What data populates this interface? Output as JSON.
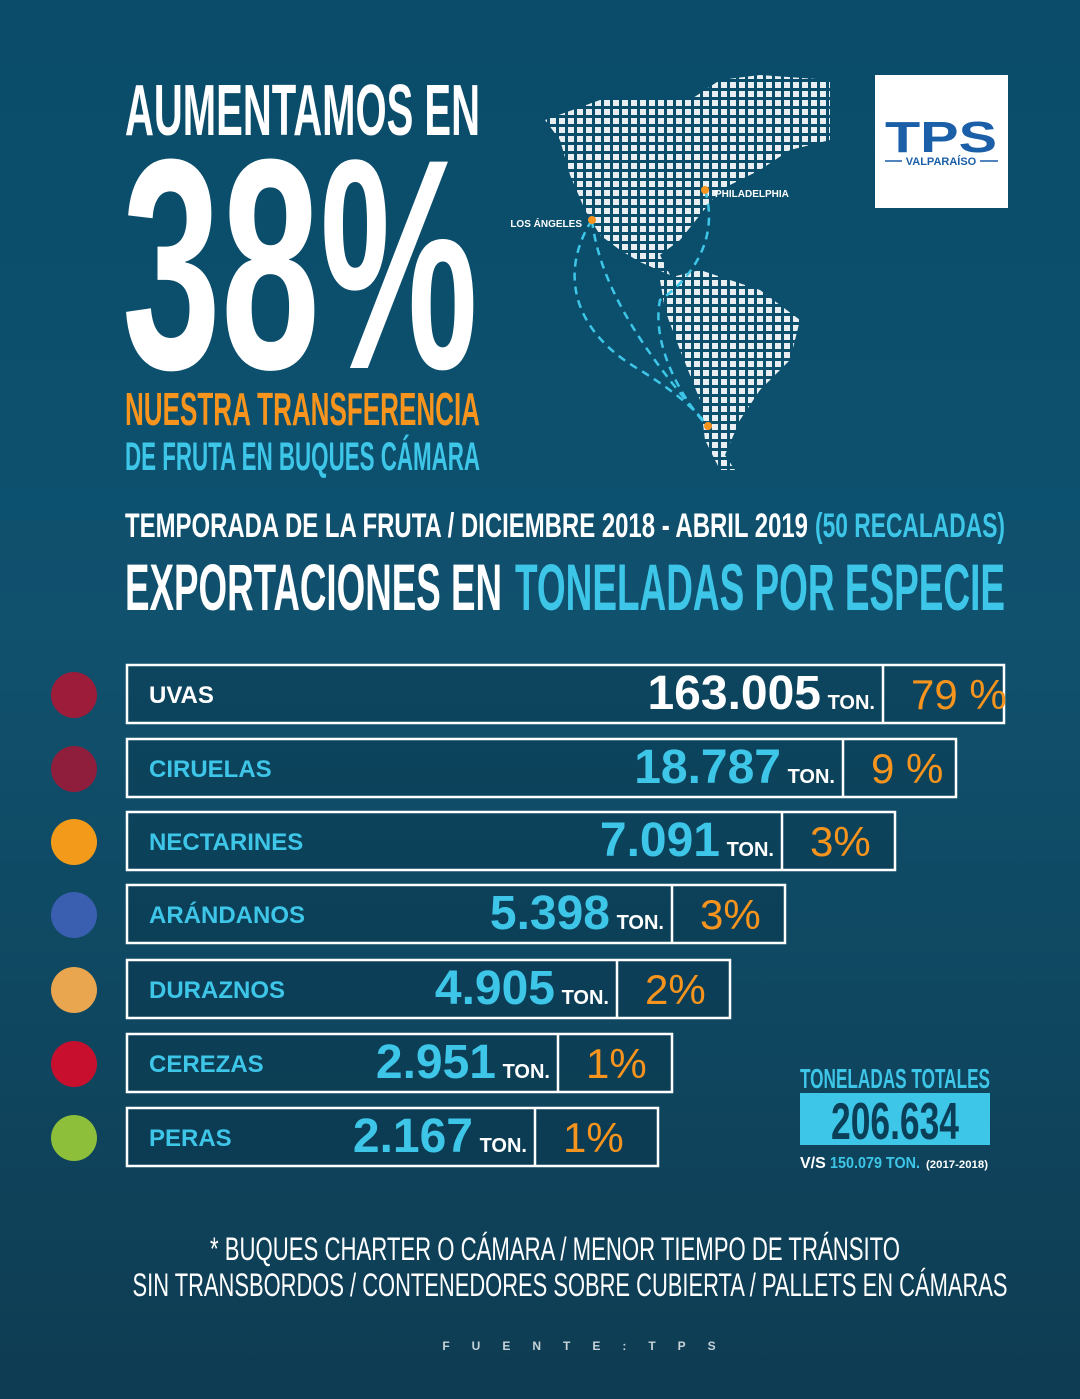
{
  "headline": {
    "line1": "AUMENTAMOS EN",
    "big": "38%",
    "line2": "NUESTRA TRANSFERENCIA",
    "line3": "DE FRUTA EN BUQUES CÁMARA"
  },
  "map": {
    "labels": [
      "PHILADELPHIA",
      "LOS ÁNGELES"
    ]
  },
  "logo": {
    "name": "TPS",
    "city": "VALPARAÍSO"
  },
  "season": {
    "text": "TEMPORADA DE LA FRUTA / DICIEMBRE 2018 - ABRIL 2019",
    "calls": "(50 RECALADAS)"
  },
  "section": {
    "title": "EXPORTACIONES EN",
    "highlight": "TONELADAS POR ESPECIE"
  },
  "rows": [
    {
      "name": "UVAS",
      "tons": "163.005",
      "unit": "TON.",
      "share": "79 %"
    },
    {
      "name": "CIRUELAS",
      "tons": "18.787",
      "unit": "TON.",
      "share": "9 %"
    },
    {
      "name": "NECTARINES",
      "tons": "7.091",
      "unit": "TON.",
      "share": "3%"
    },
    {
      "name": "ARÁNDANOS",
      "tons": "5.398",
      "unit": "TON.",
      "share": "3%"
    },
    {
      "name": "DURAZNOS",
      "tons": "4.905",
      "unit": "TON.",
      "share": "2%"
    },
    {
      "name": "CEREZAS",
      "tons": "2.951",
      "unit": "TON.",
      "share": "1%"
    },
    {
      "name": "PERAS",
      "tons": "2.167",
      "unit": "TON.",
      "share": "1%"
    }
  ],
  "totals": {
    "label": "TONELADAS TOTALES",
    "value": "206.634",
    "vs": "V/S",
    "previous": "150.079 TON.",
    "period": "(2017-2018)"
  },
  "notes": [
    "* BUQUES CHARTER O CÁMARA / MENOR TIEMPO DE TRÁNSITO",
    "SIN TRANSBORDOS / CONTENEDORES SOBRE CUBIERTA / PALLETS EN CÁMARAS"
  ],
  "source": "FUENTE:TPS"
}
